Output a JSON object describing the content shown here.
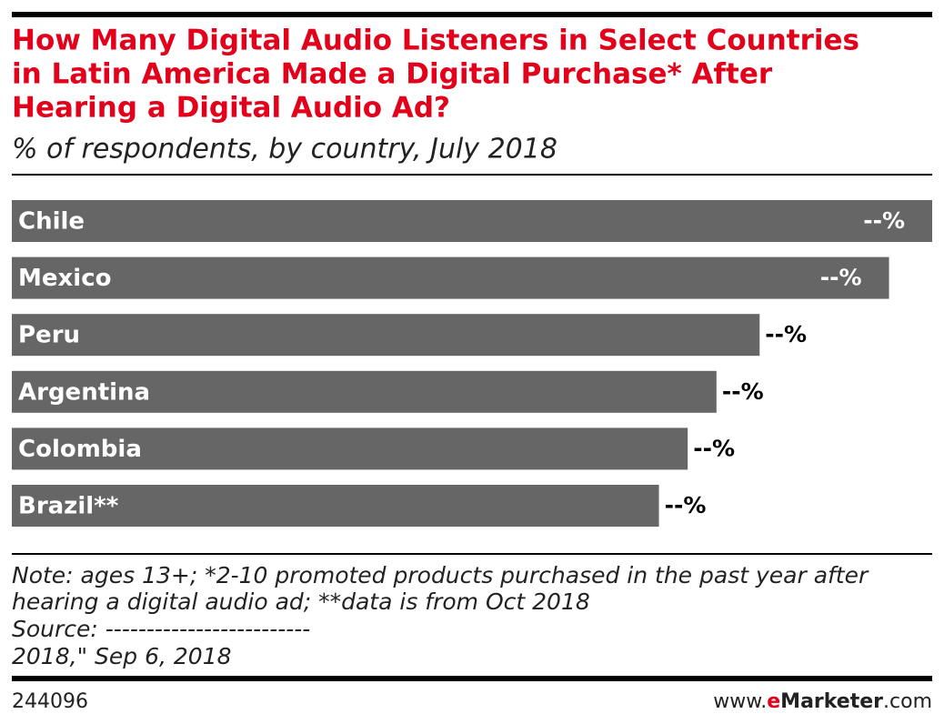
{
  "chart_data": {
    "type": "bar",
    "orientation": "horizontal",
    "title": [
      "How Many Digital Audio Listeners in Select Countries",
      "in Latin America Made a Digital Purchase* After",
      "Hearing a Digital Audio Ad?"
    ],
    "subtitle": "% of respondents, by country, July 2018",
    "categories": [
      "Chile",
      "Mexico",
      "Peru",
      "Argentina",
      "Colombia",
      "Brazil**"
    ],
    "values": [
      64,
      61,
      52,
      49,
      47,
      45
    ],
    "value_labels": [
      "--%",
      "--%",
      "--%",
      "--%",
      "--%",
      "--%"
    ],
    "color": "#666666",
    "notes": [
      "Note: ages 13+; *2-10 promoted products purchased in the past year after",
      "hearing a digital audio ad; **data is from Oct 2018",
      "Source: -------------------------",
      "2018,\" Sep 6, 2018"
    ],
    "chart_id": "244096",
    "brand": [
      "www.",
      "e",
      "Marketer",
      ".com"
    ]
  }
}
